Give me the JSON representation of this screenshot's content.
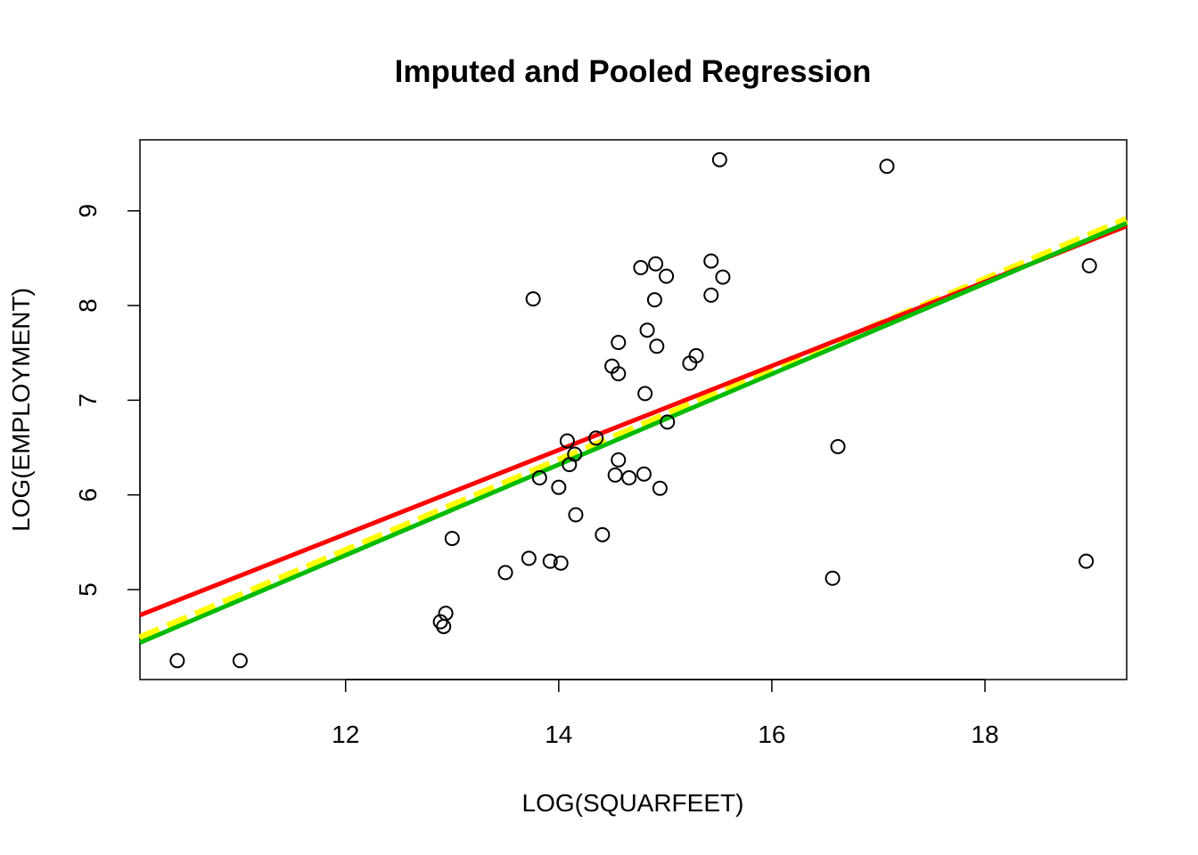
{
  "chart_data": {
    "type": "scatter",
    "title": "Imputed and Pooled Regression",
    "xlabel": "LOG(SQUARFEET)",
    "ylabel": "LOG(EMPLOYMENT)",
    "xlim": [
      10.07,
      19.33
    ],
    "ylim": [
      4.05,
      9.75
    ],
    "xticks": [
      12,
      14,
      16,
      18
    ],
    "yticks": [
      5,
      6,
      7,
      8,
      9
    ],
    "grid": false,
    "point_color": "#000000",
    "points": [
      {
        "x": 10.42,
        "y": 4.25
      },
      {
        "x": 11.01,
        "y": 4.25
      },
      {
        "x": 12.89,
        "y": 4.66
      },
      {
        "x": 12.92,
        "y": 4.61
      },
      {
        "x": 12.94,
        "y": 4.75
      },
      {
        "x": 13.0,
        "y": 5.54
      },
      {
        "x": 13.5,
        "y": 5.18
      },
      {
        "x": 13.72,
        "y": 5.33
      },
      {
        "x": 13.76,
        "y": 8.07
      },
      {
        "x": 13.82,
        "y": 6.18
      },
      {
        "x": 13.92,
        "y": 5.3
      },
      {
        "x": 14.0,
        "y": 6.08
      },
      {
        "x": 14.02,
        "y": 5.28
      },
      {
        "x": 14.08,
        "y": 6.57
      },
      {
        "x": 14.1,
        "y": 6.32
      },
      {
        "x": 14.15,
        "y": 6.43
      },
      {
        "x": 14.16,
        "y": 5.79
      },
      {
        "x": 14.35,
        "y": 6.6
      },
      {
        "x": 14.41,
        "y": 5.58
      },
      {
        "x": 14.5,
        "y": 7.36
      },
      {
        "x": 14.53,
        "y": 6.21
      },
      {
        "x": 14.56,
        "y": 7.61
      },
      {
        "x": 14.56,
        "y": 7.28
      },
      {
        "x": 14.56,
        "y": 6.37
      },
      {
        "x": 14.66,
        "y": 6.18
      },
      {
        "x": 14.77,
        "y": 8.4
      },
      {
        "x": 14.8,
        "y": 6.22
      },
      {
        "x": 14.81,
        "y": 7.07
      },
      {
        "x": 14.83,
        "y": 7.74
      },
      {
        "x": 14.9,
        "y": 8.06
      },
      {
        "x": 14.91,
        "y": 8.44
      },
      {
        "x": 14.92,
        "y": 7.57
      },
      {
        "x": 14.95,
        "y": 6.07
      },
      {
        "x": 15.01,
        "y": 8.31
      },
      {
        "x": 15.02,
        "y": 6.77
      },
      {
        "x": 15.23,
        "y": 7.39
      },
      {
        "x": 15.29,
        "y": 7.47
      },
      {
        "x": 15.43,
        "y": 8.11
      },
      {
        "x": 15.43,
        "y": 8.47
      },
      {
        "x": 15.51,
        "y": 9.54
      },
      {
        "x": 15.54,
        "y": 8.3
      },
      {
        "x": 16.57,
        "y": 5.12
      },
      {
        "x": 16.62,
        "y": 6.51
      },
      {
        "x": 17.08,
        "y": 9.47
      },
      {
        "x": 18.95,
        "y": 5.3
      },
      {
        "x": 18.98,
        "y": 8.42
      }
    ],
    "lines": [
      {
        "color": "#ffff00",
        "dashed": true,
        "width": 10,
        "x": [
          10.07,
          19.33
        ],
        "y": [
          4.48,
          8.9
        ]
      },
      {
        "color": "#ff0000",
        "dashed": false,
        "width": 5,
        "x": [
          10.07,
          19.33
        ],
        "y": [
          4.73,
          8.84
        ]
      },
      {
        "color": "#00bb00",
        "dashed": false,
        "width": 5,
        "x": [
          10.07,
          19.33
        ],
        "y": [
          4.44,
          8.87
        ]
      }
    ]
  }
}
